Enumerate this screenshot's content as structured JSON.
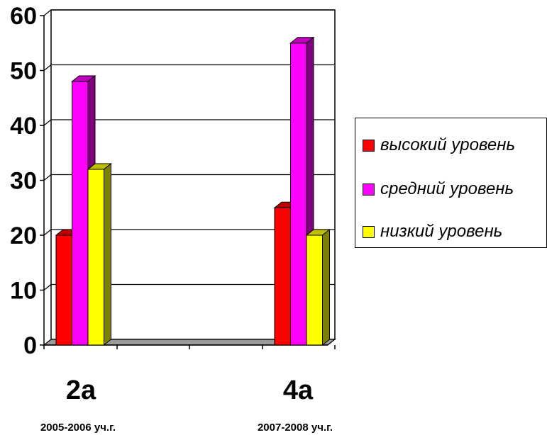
{
  "chart_data": {
    "type": "bar",
    "categories": [
      "2a",
      "4a"
    ],
    "category_sublabels": [
      "2005-2006 уч.г.",
      "2007-2008 уч.г."
    ],
    "series": [
      {
        "name": "высокий уровень",
        "values": [
          20,
          25
        ],
        "color": "#ff0000"
      },
      {
        "name": "средний уровень",
        "values": [
          48,
          55
        ],
        "color": "#ff00ff"
      },
      {
        "name": "низкий уровень",
        "values": [
          32,
          20
        ],
        "color": "#ffff00"
      }
    ],
    "y_ticks": [
      "0",
      "10",
      "20",
      "30",
      "40",
      "50",
      "60"
    ],
    "ylim": [
      0,
      60
    ],
    "grid": true,
    "legend_position": "right",
    "style": "3d-column"
  }
}
